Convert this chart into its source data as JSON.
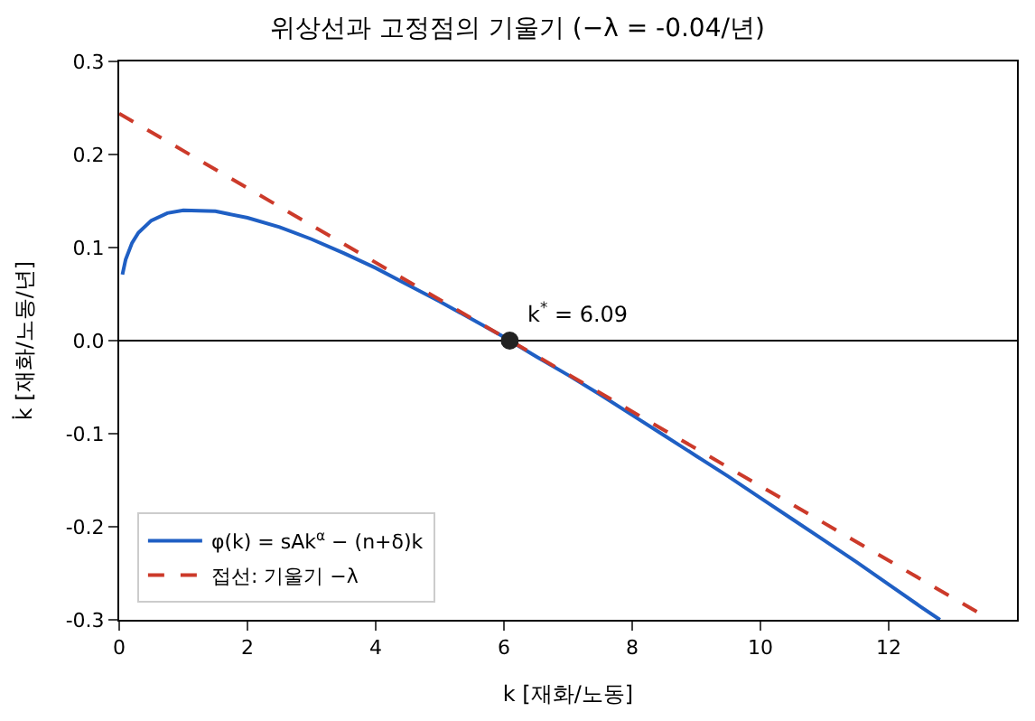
{
  "chart_data": {
    "type": "line",
    "title": "위상선과 고정점의 기울기 (−λ = -0.04/년)",
    "xlabel": "k [재화/노동]",
    "ylabel": "k̇ [재화/노동/년]",
    "xlim": [
      0,
      14
    ],
    "xticks": [
      0,
      2,
      4,
      6,
      8,
      10,
      12
    ],
    "ylim": [
      -0.3,
      0.3
    ],
    "yticks": [
      -0.3,
      -0.2,
      -0.1,
      {
        "value": 0,
        "label": "0.0"
      },
      0.1,
      0.2,
      0.3
    ],
    "grid": false,
    "legend": "bottom left",
    "series": [
      {
        "name": "φ(k) = sAk$^{α}$ − (n+δ)k",
        "color": "#1f5fc4",
        "line_style": "solid",
        "x": [
          0.05,
          0.1,
          0.2,
          0.3,
          0.5,
          0.75,
          1,
          1.5,
          2,
          2.5,
          3,
          3.5,
          4,
          4.5,
          5,
          5.5,
          6,
          6.09,
          6.5,
          7,
          7.5,
          8,
          8.5,
          9,
          9.5,
          10,
          10.5,
          11,
          11.5,
          12,
          12.5,
          12.8
        ],
        "values": [
          0.071,
          0.087,
          0.105,
          0.116,
          0.129,
          0.137,
          0.14,
          0.139,
          0.132,
          0.122,
          0.109,
          0.094,
          0.078,
          0.06,
          0.042,
          0.023,
          0.004,
          0.0,
          -0.017,
          -0.037,
          -0.058,
          -0.08,
          -0.102,
          -0.124,
          -0.146,
          -0.169,
          -0.192,
          -0.215,
          -0.238,
          -0.262,
          -0.286,
          -0.3
        ]
      },
      {
        "name": "접선: 기울기 −λ",
        "color": "#cc3a2a",
        "line_style": "dashed",
        "x": [
          0,
          13.59
        ],
        "values": [
          0.244,
          -0.3
        ]
      },
      {
        "color": "#222222",
        "type": "scatter",
        "marker": "circle",
        "x": [
          6.09
        ],
        "values": [
          0.0
        ]
      }
    ],
    "ref_lines": [
      {
        "axis": "y",
        "value": 0,
        "color": "#000000",
        "line_style": "solid"
      }
    ],
    "annotations": [
      {
        "text": "k$^{*}$ = 6.09",
        "x": 6.09,
        "y": 0.0
      }
    ]
  }
}
